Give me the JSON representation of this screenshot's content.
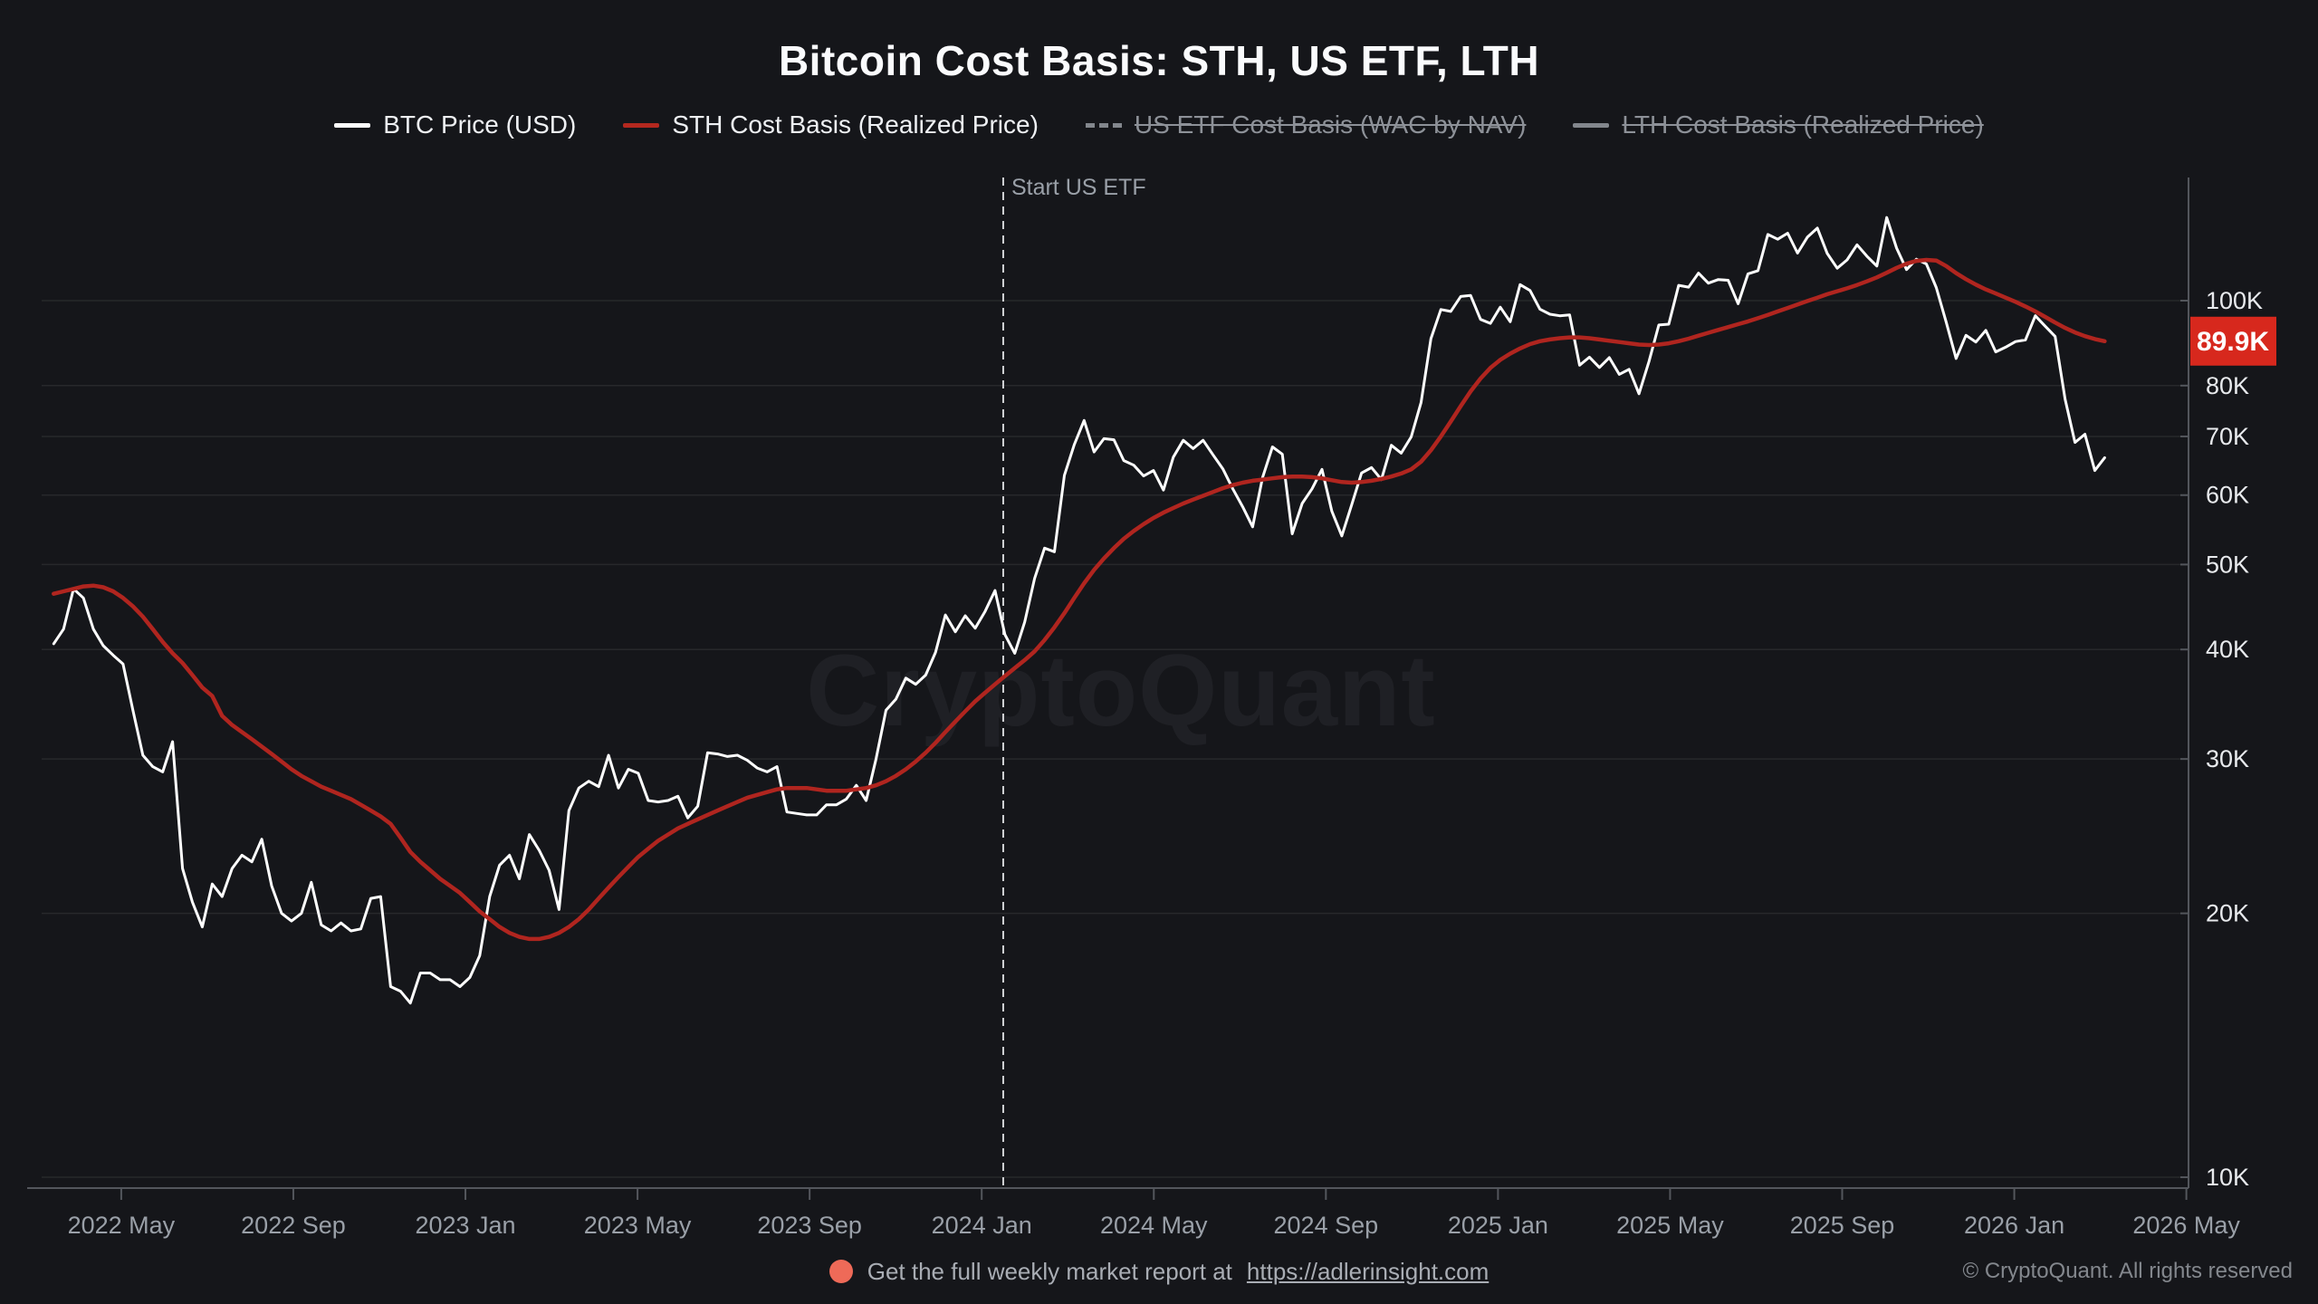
{
  "title": "Bitcoin Cost Basis: STH, US ETF, LTH",
  "watermark": "CryptoQuant",
  "legend": {
    "items": [
      {
        "label": "BTC Price (USD)",
        "enabled": true,
        "swatch_style": "solid",
        "swatch_color": "#ffffff"
      },
      {
        "label": "STH Cost Basis (Realized Price)",
        "enabled": true,
        "swatch_style": "solid",
        "swatch_color": "#b4281f"
      },
      {
        "label": "US ETF Cost Basis (WAC by NAV)",
        "enabled": false,
        "swatch_style": "dashed",
        "swatch_color": "#83878d"
      },
      {
        "label": "LTH Cost Basis (Realized Price)",
        "enabled": false,
        "swatch_style": "solid",
        "swatch_color": "#83878d"
      }
    ]
  },
  "annotation": {
    "label": "Start US ETF",
    "x_month": 24.5
  },
  "footer": {
    "report_text": "Get the full weekly market report at",
    "report_link": "https://adlerinsight.com",
    "copyright": "© CryptoQuant. All rights reserved",
    "dot_color": "#ee6a58"
  },
  "colors": {
    "background": "#15161a",
    "grid": "rgba(255,255,255,0.08)",
    "axis": "#53565c",
    "y_label": "#e8eaed",
    "x_label": "#9aa0a8",
    "annotation_line": "#d2d3d6",
    "annotation_text": "#9aa0a8",
    "badge_bg": "#d7281d",
    "badge_text": "#ffffff"
  },
  "chart_data": {
    "type": "line",
    "y_scale": "log",
    "x_unit": "months since 2022-01-01 (weekly points)",
    "x_range": [
      2.15,
      52.05
    ],
    "ylim_k": [
      9.7,
      138
    ],
    "x_ticks": [
      {
        "m": 4,
        "label": "2022 May"
      },
      {
        "m": 8,
        "label": "2022 Sep"
      },
      {
        "m": 12,
        "label": "2023 Jan"
      },
      {
        "m": 16,
        "label": "2023 May"
      },
      {
        "m": 20,
        "label": "2023 Sep"
      },
      {
        "m": 24,
        "label": "2024 Jan"
      },
      {
        "m": 28,
        "label": "2024 May"
      },
      {
        "m": 32,
        "label": "2024 Sep"
      },
      {
        "m": 36,
        "label": "2025 Jan"
      },
      {
        "m": 40,
        "label": "2025 May"
      },
      {
        "m": 44,
        "label": "2025 Sep"
      },
      {
        "m": 48,
        "label": "2026 Jan"
      },
      {
        "m": 52,
        "label": "2026 May"
      }
    ],
    "y_ticks": [
      {
        "value_k": 100,
        "label": "100K"
      },
      {
        "value_k": 80,
        "label": "80K"
      },
      {
        "value_k": 70,
        "label": "70K"
      },
      {
        "value_k": 60,
        "label": "60K"
      },
      {
        "value_k": 50,
        "label": "50K"
      },
      {
        "value_k": 40,
        "label": "40K"
      },
      {
        "value_k": 30,
        "label": "30K"
      },
      {
        "value_k": 20,
        "label": "20K"
      },
      {
        "value_k": 10,
        "label": "10K"
      }
    ],
    "current_value_badge": {
      "label": "89.9K",
      "value_k": 89.9
    },
    "series": [
      {
        "id": "btc-price",
        "name": "BTC Price (USD)",
        "color": "#ffffff",
        "visible": true,
        "x_start_month": 2.43,
        "x_step_month": 0.2303,
        "values_k": [
          40.6,
          42.2,
          46.9,
          45.8,
          42.2,
          40.4,
          39.4,
          38.5,
          34.1,
          30.3,
          29.4,
          29.0,
          31.4,
          22.5,
          20.6,
          19.3,
          21.6,
          20.9,
          22.5,
          23.3,
          22.9,
          24.3,
          21.5,
          20.0,
          19.6,
          20.0,
          21.7,
          19.4,
          19.1,
          19.5,
          19.1,
          19.2,
          20.8,
          20.9,
          16.5,
          16.3,
          15.8,
          17.1,
          17.1,
          16.8,
          16.8,
          16.5,
          16.9,
          17.9,
          20.9,
          22.7,
          23.3,
          21.9,
          24.6,
          23.6,
          22.4,
          20.2,
          26.2,
          27.8,
          28.3,
          27.9,
          30.3,
          27.8,
          29.2,
          28.9,
          26.9,
          26.8,
          26.9,
          27.2,
          25.7,
          26.5,
          30.5,
          30.4,
          30.2,
          30.3,
          29.9,
          29.3,
          29.0,
          29.4,
          26.1,
          26.0,
          25.9,
          25.9,
          26.6,
          26.6,
          27.0,
          28.0,
          26.9,
          30.0,
          34.1,
          35.1,
          37.1,
          36.5,
          37.4,
          39.7,
          43.8,
          41.9,
          43.7,
          42.3,
          44.2,
          46.7,
          41.6,
          39.6,
          43.0,
          48.2,
          52.2,
          51.7,
          63.2,
          68.5,
          73.0,
          67.2,
          69.6,
          69.4,
          65.7,
          64.9,
          63.1,
          64.0,
          60.8,
          66.3,
          69.3,
          67.8,
          69.3,
          66.7,
          64.3,
          61.0,
          58.2,
          55.2,
          62.8,
          68.1,
          66.8,
          54.2,
          58.7,
          61.0,
          64.2,
          57.5,
          53.9,
          58.5,
          63.6,
          64.5,
          62.5,
          68.4,
          67.0,
          69.9,
          76.5,
          90.5,
          97.7,
          97.2,
          101.1,
          101.4,
          95.2,
          94.2,
          98.3,
          94.6,
          104.3,
          102.7,
          97.8,
          96.5,
          96.1,
          96.3,
          84.4,
          86.2,
          83.9,
          86.1,
          82.4,
          83.5,
          78.3,
          85.2,
          93.8,
          94.0,
          104.1,
          103.6,
          107.5,
          104.7,
          105.7,
          105.5,
          99.2,
          107.3,
          108.2,
          119.0,
          117.5,
          119.4,
          113.3,
          118.2,
          121.0,
          113.2,
          108.9,
          111.3,
          115.8,
          112.4,
          109.5,
          124.4,
          114.8,
          108.5,
          111.5,
          110.1,
          103.5,
          94.5,
          85.9,
          91.3,
          89.7,
          92.5,
          87.4,
          88.5,
          89.8,
          90.2,
          96.1,
          93.5,
          91.0,
          77.2,
          68.9,
          70.4,
          64.0,
          66.2
        ]
      },
      {
        "id": "sth-cost-basis",
        "name": "STH Cost Basis (Realized Price)",
        "color": "#b0251f",
        "visible": true,
        "x_start_month": 2.43,
        "x_step_month": 0.2303,
        "values_k": [
          46.3,
          46.6,
          46.9,
          47.2,
          47.3,
          47.1,
          46.6,
          45.8,
          44.8,
          43.6,
          42.2,
          40.8,
          39.6,
          38.6,
          37.4,
          36.2,
          35.4,
          33.6,
          32.8,
          32.2,
          31.6,
          31.0,
          30.4,
          29.8,
          29.2,
          28.7,
          28.3,
          27.9,
          27.6,
          27.3,
          27.0,
          26.6,
          26.2,
          25.8,
          25.3,
          24.4,
          23.5,
          22.9,
          22.4,
          21.9,
          21.5,
          21.1,
          20.6,
          20.1,
          19.7,
          19.3,
          19.0,
          18.8,
          18.7,
          18.7,
          18.8,
          19.0,
          19.3,
          19.7,
          20.2,
          20.8,
          21.4,
          22.0,
          22.6,
          23.2,
          23.7,
          24.2,
          24.6,
          25.0,
          25.3,
          25.6,
          25.9,
          26.2,
          26.5,
          26.8,
          27.1,
          27.3,
          27.5,
          27.7,
          27.8,
          27.8,
          27.8,
          27.7,
          27.6,
          27.6,
          27.6,
          27.7,
          27.8,
          28.0,
          28.3,
          28.7,
          29.2,
          29.8,
          30.5,
          31.3,
          32.2,
          33.1,
          34.0,
          34.9,
          35.7,
          36.5,
          37.3,
          38.1,
          38.9,
          39.8,
          41.0,
          42.4,
          44.0,
          45.8,
          47.6,
          49.3,
          50.8,
          52.2,
          53.5,
          54.6,
          55.6,
          56.5,
          57.3,
          58.0,
          58.7,
          59.3,
          59.9,
          60.5,
          61.1,
          61.6,
          62.0,
          62.3,
          62.5,
          62.7,
          62.9,
          63.0,
          63.0,
          62.9,
          62.7,
          62.4,
          62.1,
          62.0,
          62.1,
          62.3,
          62.6,
          63.0,
          63.5,
          64.2,
          65.5,
          67.5,
          70.0,
          72.8,
          75.8,
          78.8,
          81.5,
          83.8,
          85.6,
          87.0,
          88.2,
          89.2,
          89.9,
          90.3,
          90.6,
          90.8,
          90.8,
          90.6,
          90.3,
          90.0,
          89.7,
          89.4,
          89.1,
          89.0,
          89.1,
          89.4,
          89.9,
          90.5,
          91.2,
          91.9,
          92.6,
          93.3,
          94.0,
          94.7,
          95.5,
          96.3,
          97.2,
          98.1,
          99.0,
          99.9,
          100.8,
          101.7,
          102.5,
          103.3,
          104.2,
          105.2,
          106.3,
          107.6,
          109.0,
          110.2,
          111.0,
          111.3,
          111.1,
          109.5,
          107.5,
          105.8,
          104.3,
          103.0,
          101.9,
          100.8,
          99.7,
          98.5,
          97.2,
          95.8,
          94.4,
          93.1,
          92.0,
          91.1,
          90.4,
          89.9
        ]
      },
      {
        "id": "us-etf-cost-basis",
        "name": "US ETF Cost Basis (WAC by NAV)",
        "color": "#83878d",
        "visible": false,
        "values_k": []
      },
      {
        "id": "lth-cost-basis",
        "name": "LTH Cost Basis (Realized Price)",
        "color": "#83878d",
        "visible": false,
        "values_k": []
      }
    ]
  }
}
